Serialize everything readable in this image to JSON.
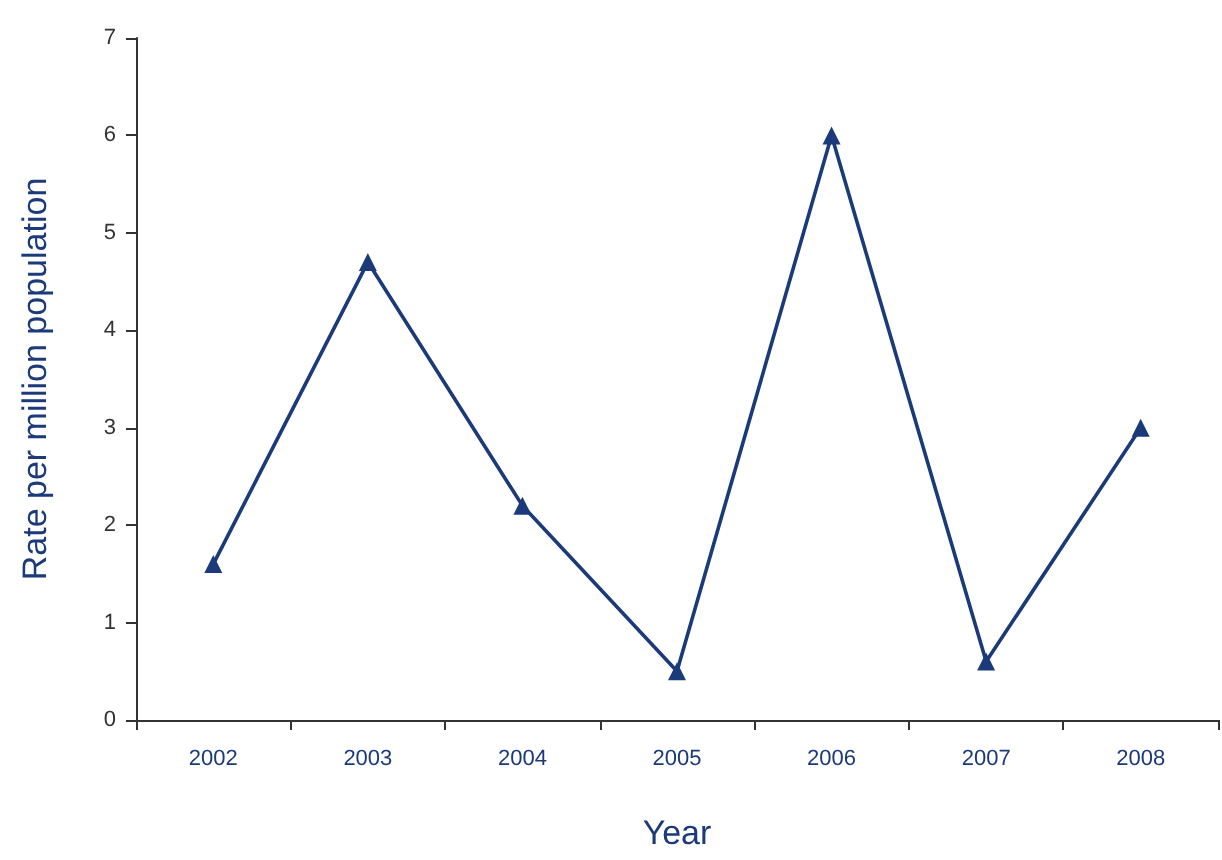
{
  "chart_data": {
    "type": "line",
    "xlabel": "Year",
    "ylabel": "Rate per million population",
    "categories": [
      "2002",
      "2003",
      "2004",
      "2005",
      "2006",
      "2007",
      "2008"
    ],
    "series": [
      {
        "color": "#1b3a7a",
        "values": [
          1.6,
          4.7,
          2.2,
          0.5,
          6.0,
          0.6,
          3.0
        ]
      }
    ],
    "ylim": [
      0,
      7
    ],
    "yticks": [
      0,
      1,
      2,
      3,
      4,
      5,
      6,
      7
    ],
    "marker": "triangle",
    "line_style": "solid"
  }
}
